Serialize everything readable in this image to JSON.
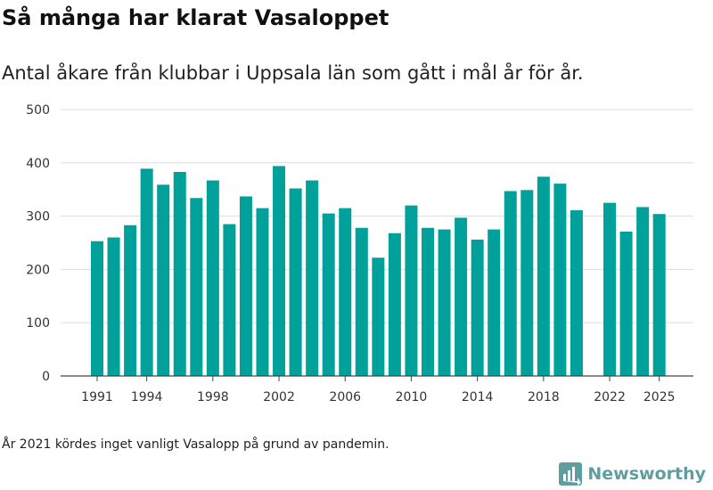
{
  "title": "Så många har klarat Vasaloppet",
  "subtitle": "Antal åkare från klubbar i Uppsala län som gått i mål år för år.",
  "footnote": "År 2021 kördes inget vanligt Vasalopp på grund av pandemin.",
  "brand": {
    "name": "Newsworthy",
    "icon": "newsworthy-logo-icon"
  },
  "colors": {
    "bar": "#00a19a",
    "grid": "#dddddd",
    "axis": "#444444",
    "brand": "#5f9ea0"
  },
  "chart_data": {
    "type": "bar",
    "title": "Så många har klarat Vasaloppet",
    "xlabel": "",
    "ylabel": "",
    "ylim": [
      0,
      500
    ],
    "yticks": [
      0,
      100,
      200,
      300,
      400,
      500
    ],
    "xticks": [
      1991,
      1994,
      1998,
      2002,
      2006,
      2010,
      2014,
      2018,
      2022,
      2025
    ],
    "grid": true,
    "categories": [
      1991,
      1992,
      1993,
      1994,
      1995,
      1996,
      1997,
      1998,
      1999,
      2000,
      2001,
      2002,
      2003,
      2004,
      2005,
      2006,
      2007,
      2008,
      2009,
      2010,
      2011,
      2012,
      2013,
      2014,
      2015,
      2016,
      2017,
      2018,
      2019,
      2020,
      2021,
      2022,
      2023,
      2024,
      2025
    ],
    "values": [
      253,
      260,
      283,
      389,
      359,
      383,
      334,
      367,
      285,
      337,
      315,
      394,
      352,
      367,
      305,
      315,
      278,
      222,
      268,
      320,
      278,
      275,
      297,
      256,
      275,
      347,
      349,
      374,
      361,
      311,
      null,
      325,
      271,
      317,
      304
    ]
  }
}
